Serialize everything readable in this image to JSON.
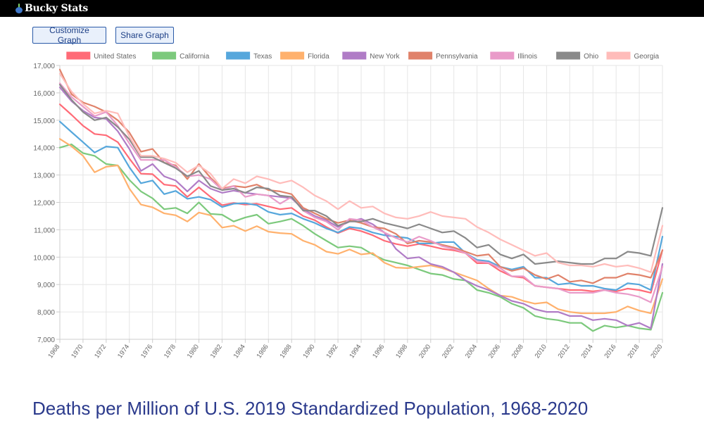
{
  "header": {
    "logo_text": "Bucky Stats",
    "logo_icon": "bucky-logo-icon"
  },
  "toolbar": {
    "customize_label": "Customize Graph",
    "share_label": "Share Graph"
  },
  "page_title": "Deaths per Million of U.S. 2019 Standardized Population, 1968-2020",
  "chart_data": {
    "type": "line",
    "title": "",
    "xlabel": "",
    "ylabel": "",
    "ylim": [
      7000,
      17000
    ],
    "yticks": [
      7000,
      8000,
      9000,
      10000,
      11000,
      12000,
      13000,
      14000,
      15000,
      16000,
      17000
    ],
    "ytick_labels": [
      "7,000",
      "8,000",
      "9,000",
      "10,000",
      "11,000",
      "12,000",
      "13,000",
      "14,000",
      "15,000",
      "16,000",
      "17,000"
    ],
    "x": [
      1968,
      1969,
      1970,
      1971,
      1972,
      1973,
      1974,
      1975,
      1976,
      1977,
      1978,
      1979,
      1980,
      1981,
      1982,
      1983,
      1984,
      1985,
      1986,
      1987,
      1988,
      1989,
      1990,
      1991,
      1992,
      1993,
      1994,
      1995,
      1996,
      1997,
      1998,
      1999,
      2000,
      2001,
      2002,
      2003,
      2004,
      2005,
      2006,
      2007,
      2008,
      2009,
      2010,
      2011,
      2012,
      2013,
      2014,
      2015,
      2016,
      2017,
      2018,
      2019,
      2020
    ],
    "xtick_labels": [
      "1968",
      "1970",
      "1972",
      "1974",
      "1976",
      "1978",
      "1980",
      "1982",
      "1984",
      "1986",
      "1988",
      "1990",
      "1992",
      "1994",
      "1996",
      "1998",
      "2000",
      "2002",
      "2004",
      "2006",
      "2008",
      "2010",
      "2012",
      "2014",
      "2016",
      "2018",
      "2020"
    ],
    "grid": true,
    "legend_position": "top",
    "series": [
      {
        "name": "United States",
        "color": "#ff6b77",
        "values": [
          15580,
          15200,
          14800,
          14500,
          14450,
          14200,
          13600,
          13050,
          13030,
          12650,
          12600,
          12200,
          12550,
          12200,
          11900,
          11980,
          11920,
          11950,
          11850,
          11750,
          11800,
          11500,
          11350,
          11100,
          10880,
          11050,
          10950,
          10800,
          10600,
          10480,
          10400,
          10480,
          10400,
          10300,
          10250,
          10150,
          9780,
          9780,
          9500,
          9300,
          9250,
          8950,
          8900,
          8850,
          8800,
          8800,
          8750,
          8800,
          8750,
          8850,
          8800,
          8700,
          10260
        ]
      },
      {
        "name": "California",
        "color": "#7cc97c",
        "values": [
          14000,
          14120,
          13800,
          13700,
          13400,
          13350,
          12820,
          12400,
          12150,
          11750,
          11800,
          11600,
          12000,
          11580,
          11550,
          11300,
          11450,
          11550,
          11220,
          11300,
          11400,
          11150,
          10850,
          10600,
          10350,
          10400,
          10350,
          10100,
          9900,
          9800,
          9700,
          9550,
          9400,
          9350,
          9200,
          9150,
          8800,
          8700,
          8550,
          8300,
          8150,
          7850,
          7750,
          7700,
          7600,
          7600,
          7300,
          7500,
          7430,
          7500,
          7400,
          7350,
          8700
        ]
      },
      {
        "name": "Texas",
        "color": "#56a7dc",
        "values": [
          14950,
          14570,
          14200,
          13820,
          14040,
          14000,
          13280,
          12700,
          12800,
          12300,
          12420,
          12130,
          12200,
          12100,
          11830,
          11950,
          11970,
          11900,
          11650,
          11550,
          11600,
          11400,
          11250,
          11050,
          10900,
          11100,
          11050,
          10900,
          10800,
          10750,
          10700,
          10500,
          10500,
          10550,
          10550,
          10150,
          9900,
          9850,
          9650,
          9550,
          9650,
          9250,
          9250,
          9000,
          9050,
          8950,
          8950,
          8850,
          8800,
          9050,
          9000,
          8800,
          10750
        ]
      },
      {
        "name": "Florida",
        "color": "#ffb16d",
        "values": [
          14320,
          14050,
          13700,
          13100,
          13300,
          13350,
          12500,
          11920,
          11820,
          11600,
          11530,
          11300,
          11630,
          11530,
          11080,
          11150,
          10950,
          11130,
          10930,
          10880,
          10850,
          10600,
          10450,
          10200,
          10120,
          10280,
          10100,
          10150,
          9800,
          9620,
          9600,
          9650,
          9700,
          9600,
          9450,
          9300,
          9150,
          8850,
          8600,
          8550,
          8400,
          8300,
          8350,
          8100,
          8000,
          7950,
          7950,
          7950,
          8000,
          8200,
          8050,
          7950,
          9200
        ]
      },
      {
        "name": "New York",
        "color": "#b07cc6",
        "values": [
          16200,
          15700,
          15350,
          15100,
          15050,
          14600,
          13950,
          13150,
          13400,
          12950,
          12800,
          12400,
          12800,
          12500,
          12350,
          12430,
          12350,
          12300,
          12250,
          12200,
          12150,
          11750,
          11500,
          11350,
          11100,
          11300,
          11400,
          11200,
          10900,
          10300,
          9950,
          10000,
          9750,
          9650,
          9450,
          9150,
          8950,
          8800,
          8600,
          8400,
          8300,
          8100,
          8000,
          8000,
          7850,
          7850,
          7700,
          7750,
          7700,
          7500,
          7600,
          7400,
          9750
        ]
      },
      {
        "name": "Pennsylvania",
        "color": "#e0826a",
        "values": [
          16850,
          15950,
          15650,
          15500,
          15300,
          15000,
          14550,
          13850,
          13950,
          13450,
          13350,
          12850,
          13400,
          12900,
          12500,
          12600,
          12550,
          12650,
          12450,
          12400,
          12300,
          11800,
          11600,
          11400,
          11250,
          11350,
          11250,
          11100,
          11050,
          10850,
          10500,
          10600,
          10550,
          10450,
          10350,
          10200,
          10050,
          10100,
          9650,
          9500,
          9600,
          9350,
          9200,
          9350,
          9100,
          9150,
          9050,
          9250,
          9250,
          9400,
          9350,
          9250,
          10250
        ]
      },
      {
        "name": "Illinois",
        "color": "#e99bc9",
        "values": [
          16350,
          15850,
          15500,
          15150,
          15300,
          14800,
          14150,
          13550,
          13550,
          13550,
          13300,
          12950,
          13000,
          12850,
          12450,
          12600,
          12200,
          12300,
          12250,
          11950,
          12200,
          11700,
          11450,
          11300,
          11000,
          11400,
          11350,
          11100,
          10900,
          10700,
          10550,
          10750,
          10600,
          10400,
          10300,
          10150,
          9850,
          9800,
          9600,
          9300,
          9300,
          8950,
          8900,
          8850,
          8700,
          8700,
          8700,
          8800,
          8700,
          8650,
          8550,
          8350,
          9650
        ]
      },
      {
        "name": "Ohio",
        "color": "#8a8a8a",
        "values": [
          16300,
          15750,
          15300,
          15000,
          15100,
          14750,
          14300,
          13650,
          13650,
          13450,
          13250,
          12950,
          13150,
          12600,
          12450,
          12500,
          12350,
          12550,
          12500,
          12250,
          12200,
          11700,
          11700,
          11500,
          11150,
          11300,
          11300,
          11400,
          11250,
          11150,
          11050,
          11200,
          11050,
          10900,
          10950,
          10700,
          10350,
          10450,
          10100,
          9950,
          10100,
          9750,
          9800,
          9850,
          9800,
          9750,
          9750,
          9950,
          9950,
          10200,
          10150,
          10050,
          11800
        ]
      },
      {
        "name": "Georgia",
        "color": "#ffbcba",
        "values": [
          16700,
          16050,
          15600,
          15250,
          15350,
          15250,
          14400,
          13700,
          13700,
          13600,
          13450,
          13100,
          13350,
          13050,
          12500,
          12850,
          12700,
          12950,
          12850,
          12700,
          12800,
          12550,
          12250,
          12050,
          11750,
          12050,
          11800,
          11850,
          11600,
          11450,
          11400,
          11500,
          11650,
          11500,
          11450,
          11400,
          11100,
          10900,
          10650,
          10450,
          10250,
          10050,
          10150,
          9800,
          9700,
          9700,
          9650,
          9750,
          9650,
          9700,
          9600,
          9450,
          11150
        ]
      }
    ]
  }
}
